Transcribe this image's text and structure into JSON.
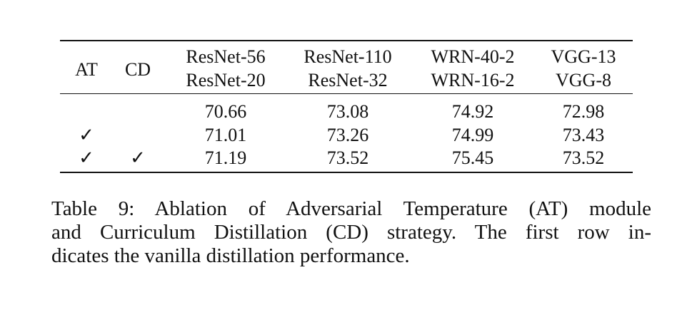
{
  "table": {
    "headers": {
      "at": "AT",
      "cd": "CD",
      "pairs": [
        {
          "teacher": "ResNet-56",
          "student": "ResNet-20"
        },
        {
          "teacher": "ResNet-110",
          "student": "ResNet-32"
        },
        {
          "teacher": "WRN-40-2",
          "student": "WRN-16-2"
        },
        {
          "teacher": "VGG-13",
          "student": "VGG-8"
        }
      ]
    },
    "rows": [
      {
        "at": "",
        "cd": "",
        "values": [
          "70.66",
          "73.08",
          "74.92",
          "72.98"
        ]
      },
      {
        "at": "✓",
        "cd": "",
        "values": [
          "71.01",
          "73.26",
          "74.99",
          "73.43"
        ]
      },
      {
        "at": "✓",
        "cd": "✓",
        "values": [
          "71.19",
          "73.52",
          "75.45",
          "73.52"
        ]
      }
    ]
  },
  "caption": {
    "lines": [
      "Table 9: Ablation of Adversarial Temperature (AT) module",
      "and Curriculum Distillation (CD) strategy. The first row in-",
      "dicates the vanilla distillation performance."
    ]
  }
}
